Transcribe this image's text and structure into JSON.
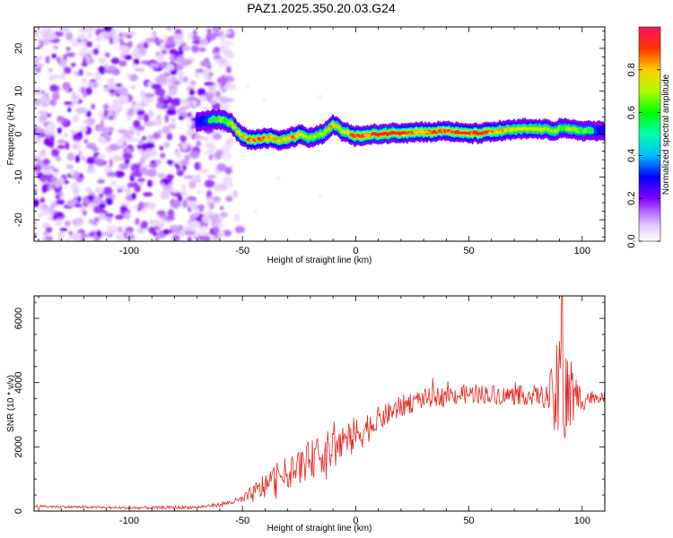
{
  "title": "PAZ1.2025.350.20.03.G24",
  "chart_data": [
    {
      "type": "heatmap",
      "xlabel": "Height of straight line (km)",
      "ylabel": "Frequency (Hz)",
      "xlim": [
        -142,
        110
      ],
      "ylim": [
        -25,
        25
      ],
      "xticks": [
        "-100",
        "-50",
        "0",
        "50",
        "100"
      ],
      "yticks": [
        "-20",
        "-10",
        "0",
        "10",
        "20"
      ],
      "noise_region_x": [
        -142,
        -55
      ],
      "ridge_track": {
        "x": [
          -70,
          -65,
          -62,
          -58,
          -55,
          -52,
          -50,
          -47,
          -44,
          -40,
          -36,
          -33,
          -30,
          -27,
          -24,
          -21,
          -18,
          -15,
          -12,
          -10,
          -8,
          -6,
          -3,
          0,
          5,
          10,
          15,
          20,
          25,
          30,
          35,
          40,
          45,
          50,
          55,
          60,
          65,
          70,
          75,
          80,
          85,
          88,
          91,
          94,
          97,
          100,
          105,
          110
        ],
        "y": [
          3,
          3.3,
          3.5,
          3.2,
          2.5,
          0.5,
          -0.5,
          -1.3,
          -1.5,
          -0.8,
          -1.2,
          -1.6,
          -1,
          -0.6,
          0,
          -1,
          -0.6,
          0,
          1,
          2.2,
          2,
          0.5,
          0.2,
          -0.5,
          -0.3,
          0,
          0.2,
          0.3,
          0.5,
          0.5,
          0.5,
          0.8,
          0.3,
          0.2,
          0.2,
          0.5,
          0.8,
          1,
          1.2,
          1.2,
          1,
          0.8,
          1.5,
          1,
          1,
          0.8,
          0.8,
          0.5
        ],
        "strength": [
          0.5,
          0.6,
          0.6,
          0.65,
          0.7,
          0.75,
          0.8,
          0.85,
          0.85,
          0.85,
          0.85,
          0.8,
          0.8,
          0.85,
          0.8,
          0.7,
          0.7,
          0.7,
          0.75,
          0.8,
          0.75,
          0.75,
          0.8,
          0.9,
          0.92,
          0.95,
          0.95,
          0.9,
          0.9,
          0.85,
          0.88,
          0.9,
          0.88,
          0.85,
          0.9,
          0.85,
          0.8,
          0.75,
          0.75,
          0.75,
          0.72,
          0.7,
          0.65,
          0.7,
          0.7,
          0.65,
          0.6,
          0.5
        ]
      },
      "colorbar": {
        "label": "Normalized spectral amplitude",
        "ticks": [
          "0.0",
          "0.2",
          "0.4",
          "0.6",
          "0.8"
        ],
        "range": [
          0,
          1
        ]
      }
    },
    {
      "type": "line",
      "xlabel": "Height of straight line (km)",
      "ylabel": "SNR (10 * v/v)",
      "xlim": [
        -142,
        110
      ],
      "ylim": [
        0,
        6700
      ],
      "xticks": [
        "-100",
        "-50",
        "0",
        "50",
        "100"
      ],
      "yticks": [
        "0",
        "2000",
        "4000",
        "6000"
      ],
      "color": "#e8231f",
      "envelope": {
        "x": [
          -142,
          -100,
          -70,
          -60,
          -55,
          -50,
          -45,
          -40,
          -35,
          -30,
          -25,
          -20,
          -15,
          -10,
          -5,
          0,
          5,
          10,
          15,
          20,
          25,
          30,
          35,
          40,
          45,
          50,
          55,
          60,
          65,
          70,
          75,
          80,
          85,
          88,
          91,
          94,
          97,
          100,
          105,
          110
        ],
        "mean": [
          150,
          100,
          120,
          200,
          280,
          350,
          550,
          800,
          1000,
          1200,
          1400,
          1600,
          1750,
          1950,
          2150,
          2350,
          2600,
          2850,
          3050,
          3250,
          3400,
          3500,
          3550,
          3600,
          3600,
          3650,
          3650,
          3650,
          3600,
          3600,
          3600,
          3600,
          3550,
          3550,
          3500,
          3500,
          3500,
          3500,
          3550,
          3550
        ],
        "spread": [
          40,
          40,
          50,
          60,
          80,
          150,
          300,
          450,
          500,
          500,
          550,
          600,
          600,
          700,
          650,
          600,
          500,
          400,
          350,
          350,
          350,
          300,
          300,
          300,
          300,
          300,
          300,
          300,
          300,
          300,
          300,
          300,
          400,
          1500,
          2200,
          1400,
          800,
          400,
          200,
          150
        ]
      },
      "peak": {
        "x": 91,
        "y": 6700
      }
    }
  ]
}
